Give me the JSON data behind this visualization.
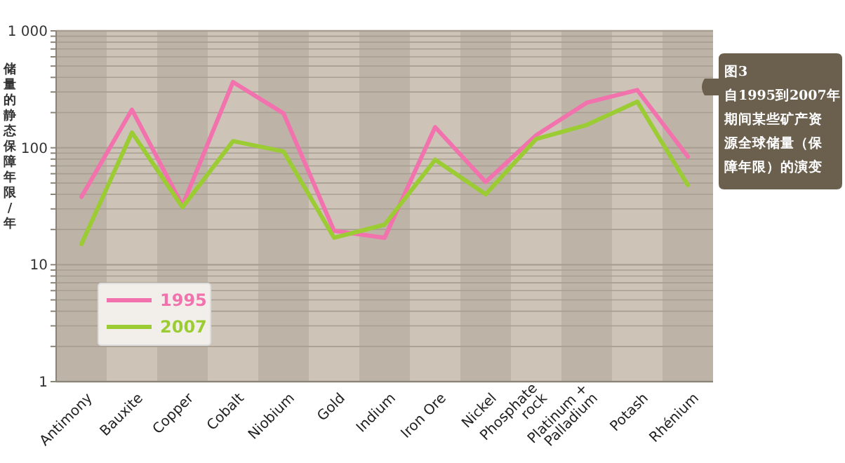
{
  "chart_data": {
    "type": "line",
    "ylabel": "储量的静态保障年限/年",
    "categories": [
      "Antimony",
      "Bauxite",
      "Copper",
      "Cobalt",
      "Niobium",
      "Gold",
      "Indium",
      "Iron Ore",
      "Nickel",
      "Phosphate\nrock",
      "Platinum +\nPalladium",
      "Potash",
      "Rhénium"
    ],
    "series": [
      {
        "name": "1995",
        "color": "#f272ad",
        "values": [
          38,
          212,
          32,
          365,
          197,
          19.5,
          17,
          150,
          51,
          128,
          243,
          312,
          84
        ]
      },
      {
        "name": "2007",
        "color": "#9ccc34",
        "values": [
          15,
          135,
          31,
          114,
          93,
          17,
          22,
          79,
          40,
          119,
          157,
          248,
          48
        ]
      }
    ],
    "log": true,
    "ylim": [
      1,
      1000
    ],
    "yticks": [
      1,
      {
        "value": 2,
        "label": null
      },
      {
        "value": 3,
        "label": null
      },
      {
        "value": 4,
        "label": null
      },
      {
        "value": 5,
        "label": null
      },
      {
        "value": 6,
        "label": null
      },
      {
        "value": 7,
        "label": null
      },
      {
        "value": 8,
        "label": null
      },
      {
        "value": 9,
        "label": null
      },
      10,
      {
        "value": 20,
        "label": null
      },
      {
        "value": 30,
        "label": null
      },
      {
        "value": 40,
        "label": null
      },
      {
        "value": 50,
        "label": null
      },
      {
        "value": 60,
        "label": null
      },
      {
        "value": 70,
        "label": null
      },
      {
        "value": 80,
        "label": null
      },
      {
        "value": 90,
        "label": null
      },
      100,
      {
        "value": 200,
        "label": null
      },
      {
        "value": 300,
        "label": null
      },
      {
        "value": 400,
        "label": null
      },
      {
        "value": 500,
        "label": null
      },
      {
        "value": 600,
        "label": null
      },
      {
        "value": 700,
        "label": null
      },
      {
        "value": 800,
        "label": null
      },
      {
        "value": 900,
        "label": null
      },
      {
        "value": 1000,
        "label": "1 000"
      }
    ],
    "grid": "y",
    "legend": "bottom left",
    "marker": "none",
    "line_style": "solid",
    "annotations": [
      "图3",
      "自1995到2007年期间某些矿产资源全球储量（保障年限）的演变"
    ]
  }
}
